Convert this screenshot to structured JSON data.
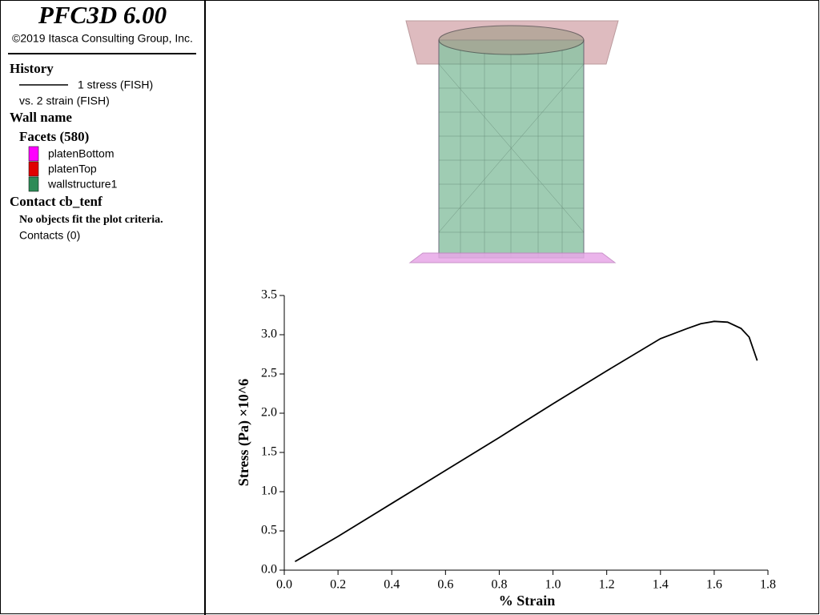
{
  "panel": {
    "title": "PFC3D 6.00",
    "copyright": "©2019 Itasca Consulting Group, Inc.",
    "history_heading": "History",
    "history_line": "1 stress (FISH)",
    "history_vs": "vs. 2 strain (FISH)",
    "wall_heading": "Wall name",
    "facets_heading": "Facets (580)",
    "facets": [
      {
        "label": "platenBottom",
        "color": "#ff00ff"
      },
      {
        "label": "platenTop",
        "color": "#e00000"
      },
      {
        "label": "wallstructure1",
        "color": "#2e8b57"
      }
    ],
    "contact_heading": "Contact cb_tenf",
    "contact_note": "No objects fit the plot criteria.",
    "contacts": "Contacts (0)"
  },
  "chart_data": {
    "type": "line",
    "x_label": "% Strain",
    "y_label": "Stress (Pa) ×10^6",
    "x": [
      0.04,
      0.2,
      0.4,
      0.6,
      0.8,
      1.0,
      1.2,
      1.4,
      1.5,
      1.55,
      1.6,
      1.65,
      1.7,
      1.73,
      1.76
    ],
    "values": [
      0.11,
      0.43,
      0.85,
      1.27,
      1.69,
      2.12,
      2.54,
      2.95,
      3.08,
      3.14,
      3.17,
      3.16,
      3.08,
      2.97,
      2.67
    ],
    "color": "#000000",
    "xlim": [
      0,
      1.8
    ],
    "ylim": [
      0,
      3.5
    ],
    "xticks": [
      {
        "value": 0,
        "label": "0.0"
      },
      0.2,
      0.4,
      0.6,
      0.8,
      {
        "value": 1,
        "label": "1.0"
      },
      1.2,
      1.4,
      1.6,
      1.8
    ],
    "yticks": [
      {
        "value": 0,
        "label": "0.0"
      },
      0.5,
      {
        "value": 1,
        "label": "1.0"
      },
      1.5,
      {
        "value": 2,
        "label": "2.0"
      },
      2.5,
      {
        "value": 3,
        "label": "3.0"
      },
      3.5
    ]
  }
}
